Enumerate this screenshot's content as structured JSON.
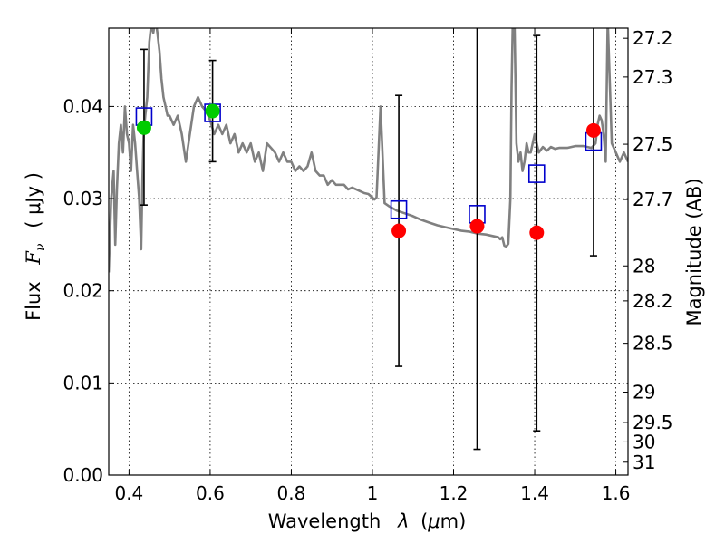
{
  "chart_data": {
    "type": "scatter",
    "xlabel_text": "Wavelength",
    "xlabel_symbol": "λ",
    "xlabel_unit_open": "(",
    "xlabel_unit_mu": "μ",
    "xlabel_unit_rest": "m)",
    "ylabel_text": "Flux",
    "ylabel_symbol": "F",
    "ylabel_subscript": "ν",
    "ylabel_unit": "( μJy )",
    "y2label": "Magnitude (AB)",
    "xlim": [
      0.35,
      1.63
    ],
    "ylim": [
      0.0,
      0.0485
    ],
    "xticks": [
      0.4,
      0.6,
      0.8,
      1.0,
      1.2,
      1.4,
      1.6
    ],
    "xtick_labels": [
      "0.4",
      "0.6",
      "0.8",
      "1",
      "1.2",
      "1.4",
      "1.6"
    ],
    "yticks": [
      0.0,
      0.01,
      0.02,
      0.03,
      0.04
    ],
    "ytick_labels": [
      "0.00",
      "0.01",
      "0.02",
      "0.03",
      "0.04"
    ],
    "mag_ticks": [
      {
        "label": "27.2",
        "flux": 0.0474
      },
      {
        "label": "27.3",
        "flux": 0.0432
      },
      {
        "label": "27.5",
        "flux": 0.0359
      },
      {
        "label": "27.7",
        "flux": 0.0299
      },
      {
        "label": "28",
        "flux": 0.0227
      },
      {
        "label": "28.2",
        "flux": 0.0189
      },
      {
        "label": "28.5",
        "flux": 0.0143
      },
      {
        "label": "29",
        "flux": 0.009
      },
      {
        "label": "29.5",
        "flux": 0.0057
      },
      {
        "label": "30",
        "flux": 0.0036
      },
      {
        "label": "31",
        "flux": 0.0014
      }
    ],
    "grid": true,
    "series": [
      {
        "kind": "model-spectrum-line",
        "color": "#808080",
        "x": [
          0.35,
          0.356,
          0.362,
          0.366,
          0.37,
          0.375,
          0.38,
          0.385,
          0.39,
          0.395,
          0.4,
          0.405,
          0.41,
          0.415,
          0.42,
          0.425,
          0.43,
          0.433,
          0.436,
          0.44,
          0.445,
          0.45,
          0.455,
          0.46,
          0.465,
          0.47,
          0.475,
          0.48,
          0.485,
          0.49,
          0.495,
          0.5,
          0.51,
          0.52,
          0.53,
          0.54,
          0.55,
          0.56,
          0.57,
          0.58,
          0.59,
          0.6,
          0.61,
          0.62,
          0.63,
          0.64,
          0.65,
          0.66,
          0.67,
          0.68,
          0.69,
          0.7,
          0.71,
          0.72,
          0.73,
          0.74,
          0.75,
          0.76,
          0.77,
          0.78,
          0.79,
          0.8,
          0.81,
          0.82,
          0.83,
          0.84,
          0.85,
          0.86,
          0.87,
          0.88,
          0.89,
          0.9,
          0.91,
          0.92,
          0.93,
          0.94,
          0.95,
          0.96,
          0.97,
          0.98,
          0.99,
          1.0,
          1.005,
          1.01,
          1.02,
          1.03,
          1.04,
          1.06,
          1.08,
          1.1,
          1.12,
          1.14,
          1.16,
          1.18,
          1.2,
          1.22,
          1.24,
          1.26,
          1.28,
          1.3,
          1.31,
          1.315,
          1.32,
          1.325,
          1.33,
          1.335,
          1.34,
          1.343,
          1.346,
          1.35,
          1.355,
          1.36,
          1.365,
          1.37,
          1.375,
          1.38,
          1.385,
          1.39,
          1.395,
          1.4,
          1.41,
          1.42,
          1.43,
          1.44,
          1.45,
          1.46,
          1.48,
          1.5,
          1.52,
          1.54,
          1.55,
          1.555,
          1.56,
          1.565,
          1.57,
          1.575,
          1.58,
          1.59,
          1.6,
          1.61,
          1.62,
          1.63
        ],
        "y": [
          0.022,
          0.03,
          0.033,
          0.025,
          0.031,
          0.036,
          0.038,
          0.035,
          0.04,
          0.037,
          0.036,
          0.033,
          0.038,
          0.036,
          0.033,
          0.03,
          0.0245,
          0.032,
          0.037,
          0.039,
          0.041,
          0.047,
          0.049,
          0.048,
          0.0495,
          0.048,
          0.046,
          0.043,
          0.041,
          0.04,
          0.039,
          0.039,
          0.038,
          0.039,
          0.037,
          0.034,
          0.037,
          0.04,
          0.041,
          0.04,
          0.0395,
          0.0385,
          0.037,
          0.038,
          0.037,
          0.038,
          0.036,
          0.037,
          0.035,
          0.036,
          0.035,
          0.036,
          0.034,
          0.035,
          0.033,
          0.036,
          0.0355,
          0.035,
          0.034,
          0.035,
          0.034,
          0.034,
          0.033,
          0.0335,
          0.033,
          0.0335,
          0.035,
          0.033,
          0.0325,
          0.0325,
          0.0315,
          0.032,
          0.0315,
          0.0315,
          0.0315,
          0.031,
          0.0312,
          0.031,
          0.0308,
          0.0306,
          0.0305,
          0.0301,
          0.0299,
          0.0301,
          0.04,
          0.0295,
          0.0292,
          0.0287,
          0.0284,
          0.0281,
          0.0277,
          0.0274,
          0.0271,
          0.0269,
          0.0267,
          0.0265,
          0.0264,
          0.0262,
          0.0261,
          0.0259,
          0.0258,
          0.0256,
          0.0258,
          0.0249,
          0.0248,
          0.0251,
          0.03,
          0.042,
          0.0495,
          0.0495,
          0.036,
          0.034,
          0.035,
          0.033,
          0.034,
          0.036,
          0.035,
          0.035,
          0.036,
          0.037,
          0.035,
          0.0356,
          0.0352,
          0.0356,
          0.0354,
          0.0355,
          0.0355,
          0.0357,
          0.0357,
          0.0355,
          0.036,
          0.038,
          0.039,
          0.0385,
          0.037,
          0.034,
          0.0495,
          0.036,
          0.035,
          0.034,
          0.035,
          0.034
        ]
      },
      {
        "kind": "observed-with-errorbars",
        "color": "#000000",
        "x": [
          0.437,
          0.606,
          1.065,
          1.258,
          1.405,
          1.545
        ],
        "y": [
          0.0377,
          0.0395,
          0.0265,
          0.027,
          0.0263,
          0.0374
        ],
        "yerr_low": [
          0.0293,
          0.034,
          0.0118,
          0.0028,
          0.0048,
          0.0238
        ],
        "yerr_high": [
          0.0462,
          0.045,
          0.0412,
          0.0485,
          0.0477,
          0.0485
        ]
      },
      {
        "kind": "model-band-flux-squares",
        "color": "#0000cc",
        "x": [
          0.437,
          0.606,
          1.065,
          1.258,
          1.405,
          1.545
        ],
        "y": [
          0.0389,
          0.0393,
          0.0288,
          0.0283,
          0.0327,
          0.0362
        ]
      },
      {
        "kind": "detections-circles",
        "color": "#00cc00",
        "x": [
          0.437,
          0.606
        ],
        "y": [
          0.0377,
          0.0395
        ]
      },
      {
        "kind": "upper-limits-circles",
        "color": "#ff0000",
        "x": [
          1.065,
          1.258,
          1.405,
          1.545
        ],
        "y": [
          0.0265,
          0.027,
          0.0263,
          0.0374
        ]
      }
    ]
  }
}
